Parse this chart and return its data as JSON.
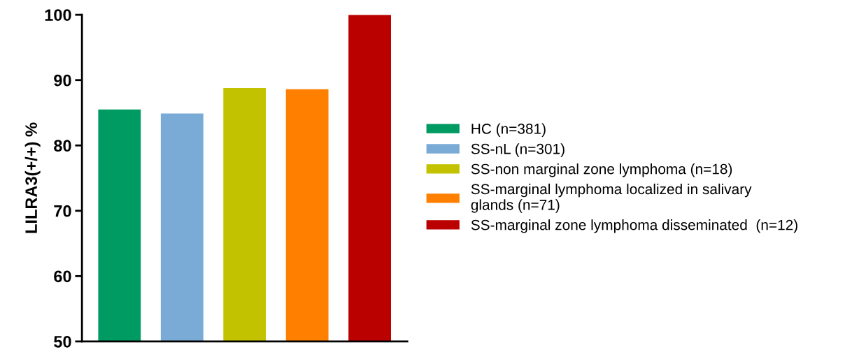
{
  "chart_data": {
    "type": "bar",
    "ylabel": "LILRA3(+/+) %",
    "categories": [
      null,
      null,
      null,
      null,
      null
    ],
    "series": [
      {
        "name": "HC (n=381)",
        "color": "#009a63",
        "values": [
          85.5,
          null,
          null,
          null,
          null
        ]
      },
      {
        "name": "SS-nL (n=301)",
        "color": "#7aaad6",
        "values": [
          null,
          84.9,
          null,
          null,
          null
        ]
      },
      {
        "name": "SS-non marginal zone lymphoma (n=18)",
        "color": "#c3c200",
        "values": [
          null,
          null,
          88.8,
          null,
          null
        ]
      },
      {
        "name": "SS-marginal lymphoma localized in salivary\nglands (n=71)",
        "color": "#ff8000",
        "values": [
          null,
          null,
          null,
          88.6,
          null
        ]
      },
      {
        "name": "SS-marginal zone lymphoma disseminated  (n=12)",
        "color": "#bb0000",
        "values": [
          null,
          null,
          null,
          null,
          100
        ]
      }
    ],
    "ylim": [
      50,
      100
    ],
    "yticks": [
      50,
      60,
      70,
      80,
      90,
      100
    ],
    "grid": false,
    "legend": "right"
  }
}
